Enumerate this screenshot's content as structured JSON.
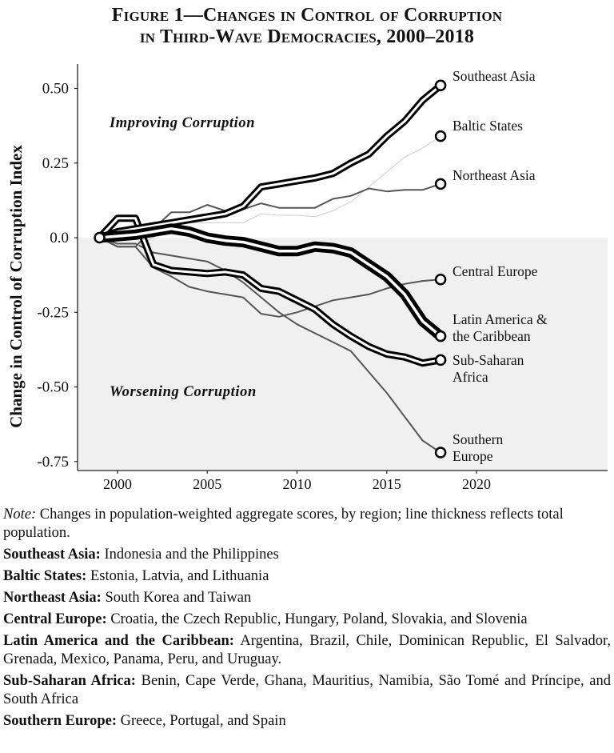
{
  "title": {
    "line1": "Figure 1—Changes in Control of Corruption",
    "line2": "in Third-Wave Democracies, 2000–2018"
  },
  "chart_data": {
    "type": "line",
    "ylabel": "Change in Control of Corruption Index",
    "xlabel": "",
    "xlim": [
      1998,
      2027
    ],
    "ylim": [
      -0.78,
      0.58
    ],
    "x_ticks": [
      2000,
      2005,
      2010,
      2015,
      2020
    ],
    "x_tick_labels": [
      "2000",
      "2005",
      "2010",
      "2015",
      "2020"
    ],
    "y_ticks": [
      0.5,
      0.25,
      0,
      -0.25,
      -0.5,
      -0.75
    ],
    "y_tick_labels": [
      "0.50",
      "0.25",
      "0.0",
      "-0.25",
      "-0.50",
      "-0.75"
    ],
    "shaded_region": "below 0",
    "annotations": [
      "Improving Corruption",
      "Worsening Corruption"
    ],
    "x": [
      1999,
      2000,
      2001,
      2002,
      2003,
      2004,
      2005,
      2006,
      2007,
      2008,
      2009,
      2010,
      2011,
      2012,
      2013,
      2014,
      2015,
      2016,
      2017,
      2018
    ],
    "series": [
      {
        "name": "Southern Europe",
        "label_lines": [
          "Southern",
          "Europe"
        ],
        "weight": "thin",
        "color": "#555555",
        "values": [
          0,
          -0.02,
          -0.02,
          -0.05,
          -0.06,
          -0.07,
          -0.08,
          -0.11,
          -0.15,
          -0.2,
          -0.25,
          -0.29,
          -0.32,
          -0.35,
          -0.38,
          -0.45,
          -0.52,
          -0.6,
          -0.68,
          -0.72
        ]
      },
      {
        "name": "Central Europe",
        "label_lines": [
          "Central Europe"
        ],
        "weight": "thin",
        "color": "#555555",
        "values": [
          0,
          -0.03,
          -0.03,
          -0.1,
          -0.13,
          -0.165,
          -0.18,
          -0.19,
          -0.2,
          -0.255,
          -0.265,
          -0.25,
          -0.23,
          -0.21,
          -0.2,
          -0.19,
          -0.17,
          -0.155,
          -0.145,
          -0.14
        ]
      },
      {
        "name": "Baltic States",
        "label_lines": [
          "Baltic States"
        ],
        "weight": "hairline",
        "color": "#cccccc",
        "values": [
          0,
          -0.03,
          -0.03,
          0,
          0.04,
          0.05,
          0.05,
          0.05,
          0.05,
          0.08,
          0.075,
          0.075,
          0.07,
          0.09,
          0.12,
          0.17,
          0.22,
          0.27,
          0.3,
          0.34
        ]
      },
      {
        "name": "Northeast Asia",
        "label_lines": [
          "Northeast Asia"
        ],
        "weight": "thin",
        "color": "#555555",
        "values": [
          0,
          -0.03,
          -0.03,
          0.03,
          0.085,
          0.085,
          0.11,
          0.09,
          0.095,
          0.115,
          0.1,
          0.1,
          0.1,
          0.13,
          0.14,
          0.165,
          0.155,
          0.16,
          0.16,
          0.18
        ]
      },
      {
        "name": "Sub-Saharan Africa",
        "label_lines": [
          "Sub-Saharan",
          "Africa"
        ],
        "weight": "thick",
        "color": "#000000",
        "values": [
          0,
          0.065,
          0.065,
          -0.09,
          -0.11,
          -0.115,
          -0.12,
          -0.115,
          -0.125,
          -0.17,
          -0.18,
          -0.21,
          -0.24,
          -0.29,
          -0.33,
          -0.365,
          -0.39,
          -0.4,
          -0.42,
          -0.41
        ]
      },
      {
        "name": "Southeast Asia",
        "label_lines": [
          "Southeast Asia"
        ],
        "weight": "thick",
        "color": "#000000",
        "values": [
          0,
          0.02,
          0.03,
          0.04,
          0.05,
          0.06,
          0.07,
          0.08,
          0.105,
          0.17,
          0.18,
          0.19,
          0.2,
          0.215,
          0.25,
          0.28,
          0.34,
          0.39,
          0.46,
          0.51
        ]
      },
      {
        "name": "Latin America & the Caribbean",
        "label_lines": [
          "Latin America &",
          "the Caribbean"
        ],
        "weight": "thickest",
        "color": "#000000",
        "values": [
          0,
          0.005,
          0.01,
          0.02,
          0.03,
          0.02,
          0,
          -0.01,
          -0.015,
          -0.03,
          -0.045,
          -0.045,
          -0.03,
          -0.035,
          -0.05,
          -0.09,
          -0.13,
          -0.19,
          -0.28,
          -0.33
        ]
      }
    ]
  },
  "notes": {
    "note_label": "Note:",
    "note_text": " Changes in population-weighted aggregate scores, by region; line thickness reflects total population.",
    "regions": [
      {
        "name": "Southeast Asia:",
        "countries": " Indonesia and the Philippines"
      },
      {
        "name": "Baltic States:",
        "countries": " Estonia, Latvia, and Lithuania"
      },
      {
        "name": "Northeast Asia:",
        "countries": " South Korea and Taiwan"
      },
      {
        "name": "Central Europe:",
        "countries": " Croatia, the Czech Republic, Hungary, Poland, Slovakia, and Slovenia"
      },
      {
        "name": "Latin America and the Caribbean:",
        "countries": " Argentina, Brazil, Chile, Dominican Republic, El Salvador, Grenada, Mexico, Panama, Peru, and Uruguay."
      },
      {
        "name": "Sub-Saharan Africa:",
        "countries": " Benin, Cape Verde, Ghana, Mauritius, Namibia, São Tomé and Príncipe, and South Africa"
      },
      {
        "name": "Southern Europe:",
        "countries": " Greece, Portugal, and Spain"
      }
    ]
  }
}
